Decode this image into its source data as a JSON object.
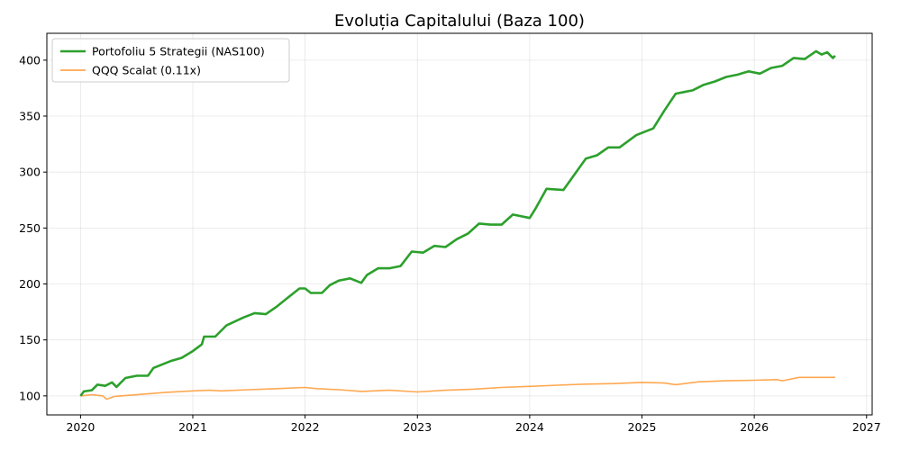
{
  "chart_data": {
    "type": "line",
    "title": "Evoluția Capitalului (Baza 100)",
    "xlabel": "",
    "ylabel": "",
    "xlim": [
      2019.7,
      2027.05
    ],
    "ylim": [
      83,
      424
    ],
    "x_ticks": [
      2020,
      2021,
      2022,
      2023,
      2024,
      2025,
      2026,
      2027
    ],
    "x_tick_labels": [
      "2020",
      "2021",
      "2022",
      "2023",
      "2024",
      "2025",
      "2026",
      "2027"
    ],
    "y_ticks": [
      100,
      150,
      200,
      250,
      300,
      350,
      400
    ],
    "y_tick_labels": [
      "100",
      "150",
      "200",
      "250",
      "300",
      "350",
      "400"
    ],
    "grid": true,
    "legend_position": "top-left",
    "series": [
      {
        "name": "Portofoliu 5 Strategii (NAS100)",
        "color": "#2ca02c",
        "points": [
          [
            2020.0,
            100
          ],
          [
            2020.03,
            104
          ],
          [
            2020.1,
            105
          ],
          [
            2020.15,
            110
          ],
          [
            2020.22,
            109
          ],
          [
            2020.28,
            112
          ],
          [
            2020.32,
            108
          ],
          [
            2020.4,
            116
          ],
          [
            2020.5,
            118
          ],
          [
            2020.6,
            118
          ],
          [
            2020.65,
            125
          ],
          [
            2020.8,
            131
          ],
          [
            2020.9,
            134
          ],
          [
            2021.0,
            140
          ],
          [
            2021.08,
            146
          ],
          [
            2021.1,
            153
          ],
          [
            2021.2,
            153
          ],
          [
            2021.3,
            163
          ],
          [
            2021.45,
            170
          ],
          [
            2021.55,
            174
          ],
          [
            2021.65,
            173
          ],
          [
            2021.75,
            180
          ],
          [
            2021.85,
            188
          ],
          [
            2021.95,
            196
          ],
          [
            2022.0,
            196
          ],
          [
            2022.05,
            192
          ],
          [
            2022.15,
            192
          ],
          [
            2022.22,
            199
          ],
          [
            2022.3,
            203
          ],
          [
            2022.4,
            205
          ],
          [
            2022.5,
            201
          ],
          [
            2022.55,
            208
          ],
          [
            2022.65,
            214
          ],
          [
            2022.75,
            214
          ],
          [
            2022.85,
            216
          ],
          [
            2022.95,
            229
          ],
          [
            2023.05,
            228
          ],
          [
            2023.15,
            234
          ],
          [
            2023.25,
            233
          ],
          [
            2023.35,
            240
          ],
          [
            2023.45,
            245
          ],
          [
            2023.55,
            254
          ],
          [
            2023.65,
            253
          ],
          [
            2023.75,
            253
          ],
          [
            2023.85,
            262
          ],
          [
            2024.0,
            259
          ],
          [
            2024.05,
            267
          ],
          [
            2024.15,
            285
          ],
          [
            2024.3,
            284
          ],
          [
            2024.4,
            298
          ],
          [
            2024.5,
            312
          ],
          [
            2024.6,
            315
          ],
          [
            2024.7,
            322
          ],
          [
            2024.8,
            322
          ],
          [
            2024.95,
            333
          ],
          [
            2025.1,
            339
          ],
          [
            2025.2,
            355
          ],
          [
            2025.3,
            370
          ],
          [
            2025.45,
            373
          ],
          [
            2025.55,
            378
          ],
          [
            2025.65,
            381
          ],
          [
            2025.75,
            385
          ],
          [
            2025.85,
            387
          ],
          [
            2025.95,
            390
          ],
          [
            2026.05,
            388
          ],
          [
            2026.15,
            393
          ],
          [
            2026.25,
            395
          ],
          [
            2026.35,
            402
          ],
          [
            2026.45,
            401
          ],
          [
            2026.55,
            408
          ],
          [
            2026.6,
            405
          ],
          [
            2026.65,
            407
          ],
          [
            2026.7,
            402
          ],
          [
            2026.72,
            404
          ]
        ]
      },
      {
        "name": "QQQ Scalat (0.11x)",
        "color": "#ff9933",
        "points": [
          [
            2020.0,
            100
          ],
          [
            2020.1,
            101
          ],
          [
            2020.2,
            100
          ],
          [
            2020.23,
            97
          ],
          [
            2020.3,
            99.5
          ],
          [
            2020.5,
            101
          ],
          [
            2020.75,
            103
          ],
          [
            2021.0,
            104.5
          ],
          [
            2021.15,
            105
          ],
          [
            2021.25,
            104.5
          ],
          [
            2021.5,
            105.5
          ],
          [
            2021.75,
            106.5
          ],
          [
            2022.0,
            107.5
          ],
          [
            2022.1,
            106.5
          ],
          [
            2022.3,
            105.5
          ],
          [
            2022.5,
            104
          ],
          [
            2022.75,
            105
          ],
          [
            2023.0,
            103.5
          ],
          [
            2023.25,
            105
          ],
          [
            2023.5,
            106
          ],
          [
            2023.75,
            107.5
          ],
          [
            2024.0,
            108.5
          ],
          [
            2024.25,
            109.5
          ],
          [
            2024.5,
            110.5
          ],
          [
            2024.75,
            111
          ],
          [
            2025.0,
            112
          ],
          [
            2025.2,
            111.5
          ],
          [
            2025.3,
            110
          ],
          [
            2025.5,
            112.5
          ],
          [
            2025.75,
            113.5
          ],
          [
            2026.0,
            114
          ],
          [
            2026.2,
            114.5
          ],
          [
            2026.25,
            113.5
          ],
          [
            2026.4,
            116.5
          ],
          [
            2026.6,
            116.5
          ],
          [
            2026.72,
            116.5
          ]
        ]
      }
    ]
  }
}
